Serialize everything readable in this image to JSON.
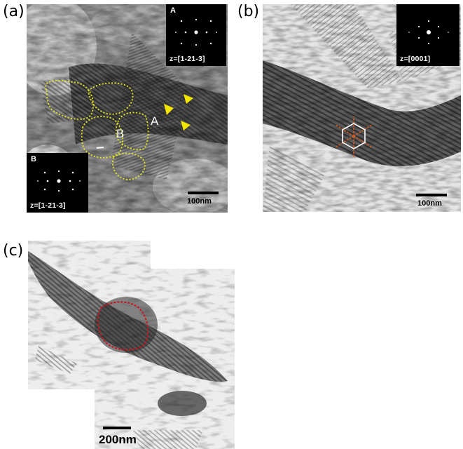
{
  "panels": {
    "a": {
      "label": "(a)",
      "inset_A": {
        "letter": "A",
        "zone_axis": "z=[1-21-3]"
      },
      "inset_B": {
        "letter": "B",
        "zone_axis": "z=[1-21-3]"
      },
      "grain_label_A": "A",
      "grain_label_B": "B",
      "scale_text": "100nm",
      "outline_color": "#e8e81c",
      "arrow_color": "#f2e600"
    },
    "b": {
      "label": "(b)",
      "inset": {
        "zone_axis": "z=[0001]"
      },
      "scale_text": "100nm",
      "hexagon_color": "#ffffff",
      "ray_color": "#e05a20"
    },
    "c": {
      "label": "(c)",
      "scale_text": "200nm",
      "outline_color": "#c8141e"
    }
  }
}
